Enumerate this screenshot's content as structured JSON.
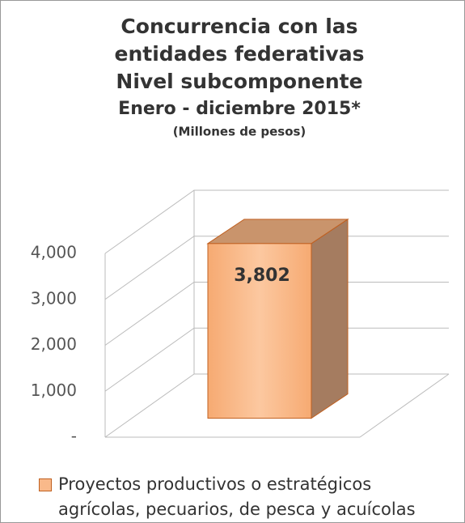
{
  "chart_data": {
    "type": "bar3d",
    "title": [
      "Concurrencia con las",
      "entidades federativas",
      "Nivel subcomponente",
      "Enero - diciembre 2015*"
    ],
    "subtitle": "(Millones de pesos)",
    "series": [
      {
        "name": "Proyectos productivos o estratégicos agrícolas, pecuarios, de pesca y acuícolas",
        "color": "#f9b98a",
        "values": [
          3802
        ],
        "value_labels": [
          "3,802"
        ]
      }
    ],
    "ylim": [
      0,
      4000
    ],
    "yticks": [
      {
        "value": 0,
        "label": "-"
      },
      {
        "value": 1000,
        "label": "1,000"
      },
      {
        "value": 2000,
        "label": "2,000"
      },
      {
        "value": 3000,
        "label": "3,000"
      },
      {
        "value": 4000,
        "label": "4,000"
      }
    ],
    "grid": true
  }
}
